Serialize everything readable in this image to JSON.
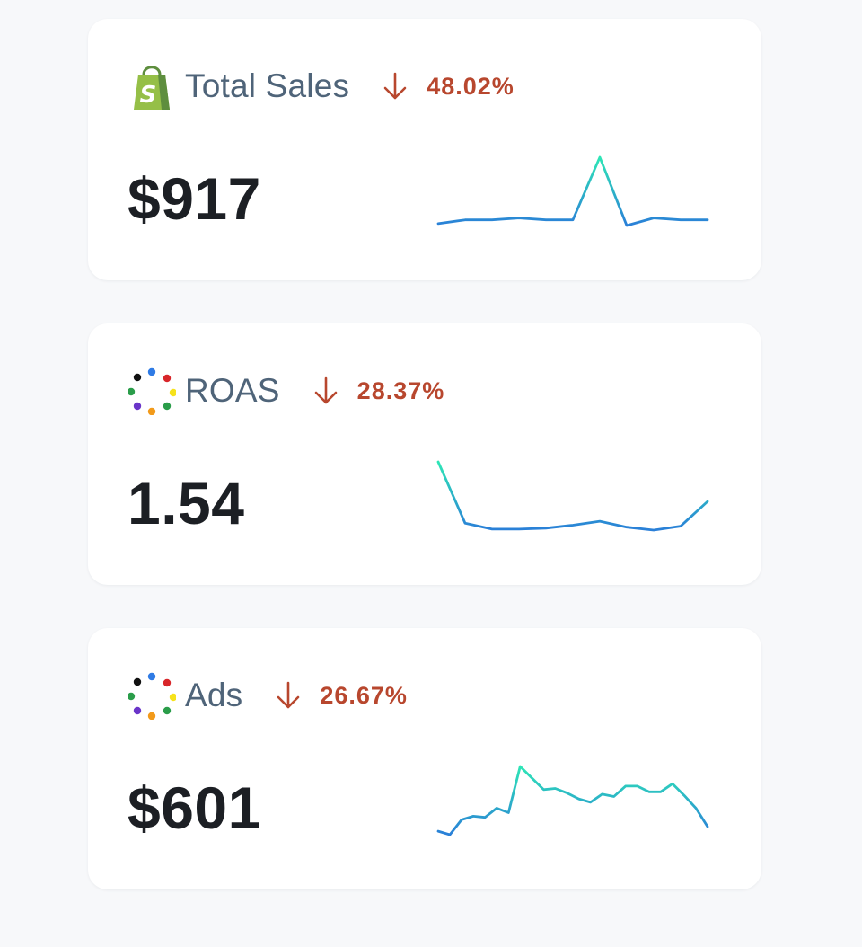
{
  "colors": {
    "page_background": "#f7f8fa",
    "card_background": "#ffffff",
    "label": "#4f6479",
    "value": "#1c1f24",
    "change_negative": "#b8472e",
    "sparkline_low": "#2a7fd8",
    "sparkline_high": "#2ee6b6"
  },
  "cards": [
    {
      "id": "total-sales",
      "icon": "shopify-bag-icon",
      "label": "Total Sales",
      "change_direction": "down",
      "change": "48.02%",
      "value": "$917",
      "sparkline": [
        20,
        22,
        22,
        23,
        22,
        22,
        55,
        19,
        23,
        22,
        22
      ]
    },
    {
      "id": "roas",
      "icon": "dots-ring-icon",
      "label": "ROAS",
      "change_direction": "down",
      "change": "28.37%",
      "value": "1.54",
      "sparkline": [
        70,
        8,
        2,
        2,
        3,
        6,
        10,
        4,
        1,
        5,
        30
      ]
    },
    {
      "id": "ads",
      "icon": "dots-ring-icon",
      "label": "Ads",
      "change_direction": "down",
      "change": "26.67%",
      "value": "$601",
      "sparkline": [
        6,
        3,
        16,
        19,
        18,
        26,
        22,
        62,
        52,
        42,
        43,
        39,
        34,
        31,
        38,
        36,
        45,
        45,
        40,
        40,
        47,
        37,
        26,
        10
      ]
    }
  ]
}
